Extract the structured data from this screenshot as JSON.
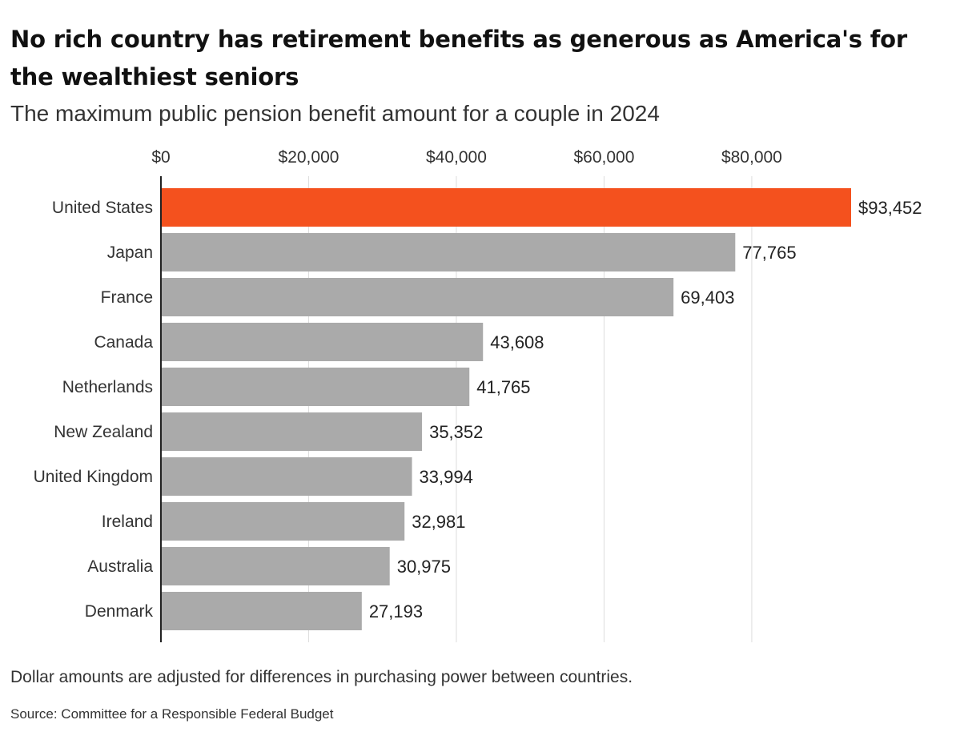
{
  "chart_data": {
    "type": "bar",
    "orientation": "horizontal",
    "title": "No rich country has retirement benefits as generous as America's for the wealthiest seniors",
    "subtitle": "The maximum public pension benefit amount for a couple in 2024",
    "categories": [
      "United States",
      "Japan",
      "France",
      "Canada",
      "Netherlands",
      "New Zealand",
      "United Kingdom",
      "Ireland",
      "Australia",
      "Denmark"
    ],
    "values": [
      93452,
      77765,
      69403,
      43608,
      41765,
      35352,
      33994,
      32981,
      30975,
      27193
    ],
    "value_labels": [
      "$93,452",
      "77,765",
      "69,403",
      "43,608",
      "41,765",
      "35,352",
      "33,994",
      "32,981",
      "30,975",
      "27,193"
    ],
    "x_ticks": [
      0,
      20000,
      40000,
      60000,
      80000
    ],
    "x_tick_labels": [
      "$0",
      "$20,000",
      "$40,000",
      "$60,000",
      "$80,000"
    ],
    "xlim": [
      0,
      93452
    ],
    "xlabel": "",
    "ylabel": "",
    "axis_position": "top",
    "grid": true,
    "legend": "none",
    "highlight_category": "United States",
    "colors": {
      "highlight": "#f4511e",
      "bar": "#aaaaaa",
      "grid": "#dddddd",
      "axis": "#222222"
    },
    "note": "Dollar amounts are adjusted for differences in purchasing power between countries.",
    "source": "Source: Committee for a Responsible Federal Budget"
  }
}
